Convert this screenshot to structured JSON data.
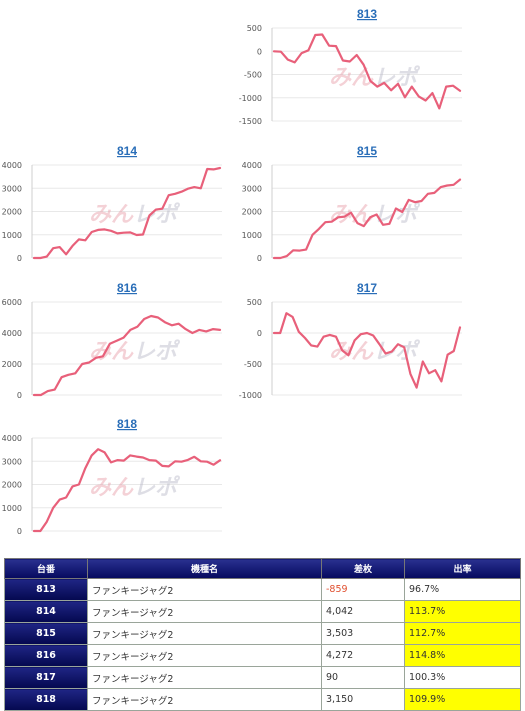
{
  "chart_data": [
    {
      "type": "line",
      "title": "813",
      "ylim": [
        -1500,
        500
      ],
      "yticks": [
        500,
        0,
        -500,
        -1000,
        -1500
      ],
      "values": [
        0,
        -10,
        -180,
        -240,
        -40,
        20,
        350,
        360,
        120,
        110,
        -200,
        -220,
        -80,
        -290,
        -640,
        -760,
        -680,
        -840,
        -700,
        -990,
        -760,
        -970,
        -1060,
        -900,
        -1230,
        -760,
        -740,
        -850
      ]
    },
    {
      "type": "line",
      "title": "814",
      "ylim": [
        0,
        4000
      ],
      "yticks": [
        4000,
        3000,
        2000,
        1000,
        0
      ],
      "values": [
        0,
        0,
        60,
        420,
        470,
        160,
        520,
        800,
        760,
        1120,
        1210,
        1230,
        1170,
        1060,
        1090,
        1100,
        990,
        1010,
        1830,
        2080,
        2120,
        2700,
        2760,
        2850,
        2980,
        3050,
        3000,
        3830,
        3810,
        3870
      ]
    },
    {
      "type": "line",
      "title": "815",
      "ylim": [
        0,
        4000
      ],
      "yticks": [
        4000,
        3000,
        2000,
        1000,
        0
      ],
      "values": [
        0,
        0,
        80,
        330,
        320,
        360,
        1000,
        1250,
        1540,
        1560,
        1750,
        1780,
        1950,
        1500,
        1370,
        1750,
        1870,
        1430,
        1470,
        2130,
        1980,
        2500,
        2400,
        2450,
        2760,
        2800,
        3050,
        3120,
        3150,
        3370
      ]
    },
    {
      "type": "line",
      "title": "816",
      "ylim": [
        0,
        6000
      ],
      "yticks": [
        6000,
        4000,
        2000,
        0
      ],
      "values": [
        0,
        0,
        250,
        350,
        1150,
        1300,
        1400,
        2000,
        2100,
        2400,
        2500,
        3300,
        3500,
        3700,
        4200,
        4400,
        4900,
        5100,
        5000,
        4700,
        4500,
        4600,
        4250,
        4000,
        4200,
        4100,
        4250,
        4200
      ]
    },
    {
      "type": "line",
      "title": "817",
      "ylim": [
        -1000,
        500
      ],
      "yticks": [
        500,
        0,
        -500,
        -1000
      ],
      "values": [
        0,
        0,
        320,
        260,
        20,
        -80,
        -200,
        -220,
        -60,
        -30,
        -60,
        -280,
        -360,
        -120,
        -20,
        0,
        -40,
        -180,
        -330,
        -300,
        -180,
        -230,
        -660,
        -880,
        -460,
        -650,
        -600,
        -780,
        -350,
        -290,
        90
      ]
    },
    {
      "type": "line",
      "title": "818",
      "ylim": [
        0,
        4000
      ],
      "yticks": [
        4000,
        3000,
        2000,
        1000,
        0
      ],
      "values": [
        0,
        0,
        400,
        1000,
        1350,
        1440,
        1920,
        2000,
        2700,
        3250,
        3520,
        3380,
        2950,
        3050,
        3030,
        3250,
        3200,
        3160,
        3050,
        3030,
        2800,
        2780,
        3000,
        2980,
        3060,
        3190,
        3000,
        2980,
        2850,
        3040
      ]
    }
  ],
  "watermark": "みんレポ",
  "table": {
    "headers": [
      "台番",
      "機種名",
      "差枚",
      "出率"
    ],
    "rows": [
      {
        "no": "813",
        "name": "ファンキージャグ2",
        "diff": "-859",
        "rate": "96.7%",
        "neg": true,
        "hi": false
      },
      {
        "no": "814",
        "name": "ファンキージャグ2",
        "diff": "4,042",
        "rate": "113.7%",
        "neg": false,
        "hi": true
      },
      {
        "no": "815",
        "name": "ファンキージャグ2",
        "diff": "3,503",
        "rate": "112.7%",
        "neg": false,
        "hi": true
      },
      {
        "no": "816",
        "name": "ファンキージャグ2",
        "diff": "4,272",
        "rate": "114.8%",
        "neg": false,
        "hi": true
      },
      {
        "no": "817",
        "name": "ファンキージャグ2",
        "diff": "90",
        "rate": "100.3%",
        "neg": false,
        "hi": false
      },
      {
        "no": "818",
        "name": "ファンキージャグ2",
        "diff": "3,150",
        "rate": "109.9%",
        "neg": false,
        "hi": true
      }
    ]
  },
  "colors": {
    "line": "#e8607a",
    "title": "#2a6eb8",
    "header": "#05095e",
    "highlight": "#ffff00",
    "negative": "#e05030"
  }
}
